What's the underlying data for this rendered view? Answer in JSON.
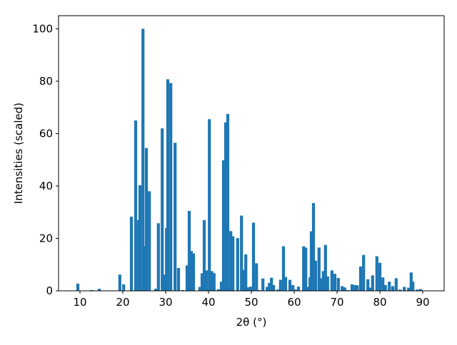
{
  "chart_data": {
    "type": "bar",
    "x": [
      9.5,
      12.7,
      14.5,
      19.3,
      20.2,
      22,
      23,
      23.7,
      24,
      24.7,
      25,
      25.5,
      26.2,
      27.7,
      28.3,
      29.2,
      29.7,
      30.2,
      30.5,
      31.2,
      32.2,
      33,
      34,
      35,
      35.5,
      36,
      36.5,
      38,
      38.5,
      39,
      39.5,
      40.2,
      40.8,
      41.3,
      42.3,
      43,
      43.5,
      44,
      44.5,
      45.2,
      45.7,
      46.8,
      47.7,
      48.2,
      48.7,
      49.2,
      49.8,
      50.5,
      51.2,
      51.7,
      52.7,
      53.7,
      54.2,
      54.7,
      55.2,
      56.2,
      56.8,
      57.5,
      58,
      59,
      59.7,
      60.3,
      61,
      62.2,
      62.7,
      63.2,
      63.7,
      64,
      64.5,
      65,
      65.8,
      66.3,
      66.8,
      67.3,
      67.8,
      68.8,
      69.5,
      70.3,
      71.2,
      71.8,
      72.5,
      73.5,
      74.2,
      74.7,
      75.5,
      76.2,
      77.2,
      77.8,
      78.3,
      79.3,
      80,
      80.7,
      81.3,
      82.2,
      83,
      83.8,
      84.7,
      85.7,
      86.7,
      87.3,
      87.7,
      88.7,
      89.5
    ],
    "values": [
      2.7,
      0.3,
      0.8,
      6.2,
      2.5,
      28.3,
      65,
      27,
      40.3,
      100,
      17,
      54.5,
      38,
      0.8,
      25.8,
      62,
      6.2,
      24,
      80.7,
      79.3,
      56.5,
      8.7,
      0.3,
      9.7,
      30.5,
      15.2,
      14.3,
      1.5,
      6.7,
      27,
      7.8,
      65.5,
      7.5,
      6.7,
      0.6,
      3.5,
      49.8,
      64.3,
      67.5,
      22.8,
      20.8,
      20.1,
      28.7,
      8,
      13.9,
      1.3,
      1.6,
      26,
      10.5,
      0.3,
      4.7,
      1.5,
      3,
      5,
      2.2,
      0.5,
      4.2,
      17,
      5.3,
      4.2,
      2.2,
      0.5,
      1.6,
      17,
      16.5,
      1.5,
      5.2,
      22.7,
      33.5,
      11.5,
      16.5,
      4.8,
      7.5,
      17.5,
      5.5,
      7.8,
      6.5,
      4.9,
      1.8,
      1.3,
      0.3,
      2.5,
      2.2,
      2.1,
      9.3,
      13.7,
      4.4,
      1.2,
      5.9,
      13.2,
      10.7,
      5.1,
      2.2,
      3.5,
      1.8,
      4.8,
      0.5,
      1.5,
      1.2,
      7,
      3.5,
      0.5,
      0.7
    ],
    "color": "#1f77b4",
    "xlabel": "2θ (°)",
    "ylabel": "Intensities (scaled)",
    "xlim": [
      5,
      95
    ],
    "ylim": [
      0,
      105
    ],
    "xticks": [
      10,
      20,
      30,
      40,
      50,
      60,
      70,
      80,
      90
    ],
    "yticks": [
      0,
      20,
      40,
      60,
      80,
      100
    ],
    "grid": false
  }
}
